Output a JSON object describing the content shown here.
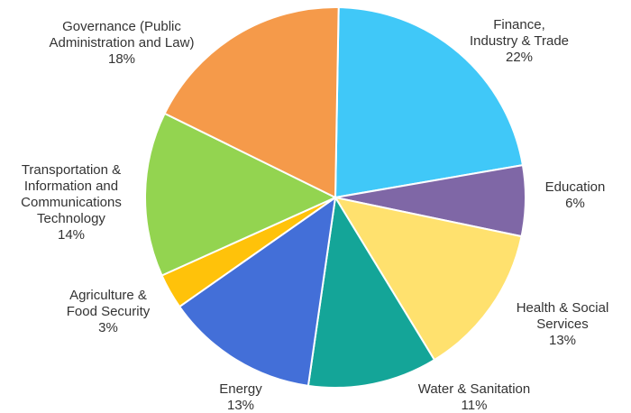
{
  "chart_data": {
    "type": "pie",
    "slices": [
      {
        "label": [
          "Finance,",
          "Industry & Trade"
        ],
        "value": 22,
        "display": "22%",
        "color": "#40C8F8"
      },
      {
        "label": [
          "Education"
        ],
        "value": 6,
        "display": "6%",
        "color": "#7F67A6"
      },
      {
        "label": [
          "Health & Social",
          "Services"
        ],
        "value": 13,
        "display": "13%",
        "color": "#FFE16E"
      },
      {
        "label": [
          "Water & Sanitation"
        ],
        "value": 11,
        "display": "11%",
        "color": "#14A598"
      },
      {
        "label": [
          "Energy"
        ],
        "value": 13,
        "display": "13%",
        "color": "#436FD8"
      },
      {
        "label": [
          "Agriculture &",
          "Food Security"
        ],
        "value": 3,
        "display": "3%",
        "color": "#FFC20A"
      },
      {
        "label": [
          "Transportation &",
          "Information and",
          "Communications",
          "Technology"
        ],
        "value": 14,
        "display": "14%",
        "color": "#93D450"
      },
      {
        "label": [
          "Governance (Public",
          "Administration and Law)"
        ],
        "value": 18,
        "display": "18%",
        "color": "#F59A4A"
      }
    ]
  }
}
